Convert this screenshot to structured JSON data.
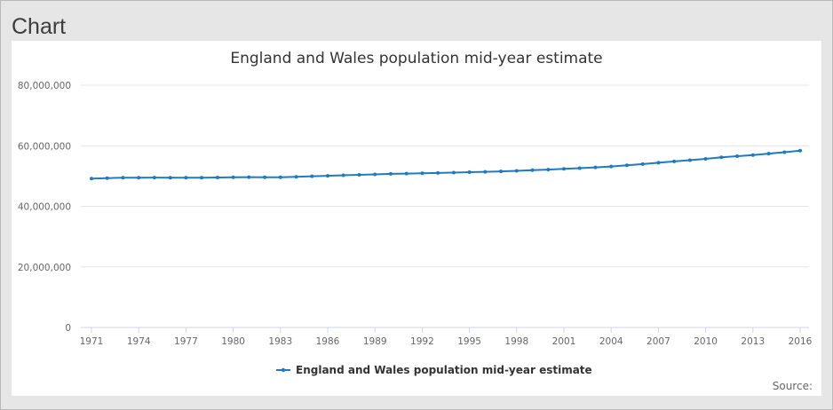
{
  "page": {
    "heading": "Chart",
    "source_label": "Source:"
  },
  "colors": {
    "series": "#1f7bbf",
    "grid": "#e6e6e6",
    "axis": "#ccd6eb"
  },
  "chart_data": {
    "type": "line",
    "title": "England and Wales population mid-year estimate",
    "xlabel": "",
    "ylabel": "",
    "ylim": [
      0,
      80000000
    ],
    "xlim": [
      1971,
      2016
    ],
    "yticks": [
      0,
      20000000,
      40000000,
      60000000,
      80000000
    ],
    "ytick_labels": [
      "0",
      "20,000,000",
      "40,000,000",
      "60,000,000",
      "80,000,000"
    ],
    "xticks": [
      1971,
      1974,
      1977,
      1980,
      1983,
      1986,
      1989,
      1992,
      1995,
      1998,
      2001,
      2004,
      2007,
      2010,
      2013,
      2016
    ],
    "xtick_labels": [
      "1971",
      "1974",
      "1977",
      "1980",
      "1983",
      "1986",
      "1989",
      "1992",
      "1995",
      "1998",
      "2001",
      "2004",
      "2007",
      "2010",
      "2013",
      "2016"
    ],
    "grid": true,
    "legend_position": "bottom-center",
    "x": [
      1971,
      1972,
      1973,
      1974,
      1975,
      1976,
      1977,
      1978,
      1979,
      1980,
      1981,
      1982,
      1983,
      1984,
      1985,
      1986,
      1987,
      1988,
      1989,
      1990,
      1991,
      1992,
      1993,
      1994,
      1995,
      1996,
      1997,
      1998,
      1999,
      2000,
      2001,
      2002,
      2003,
      2004,
      2005,
      2006,
      2007,
      2008,
      2009,
      2010,
      2011,
      2012,
      2013,
      2014,
      2015,
      2016
    ],
    "series": [
      {
        "name": "England and Wales population mid-year estimate",
        "values": [
          49150000,
          49330000,
          49460000,
          49470000,
          49480000,
          49460000,
          49440000,
          49440000,
          49510000,
          49600000,
          49630000,
          49580000,
          49620000,
          49760000,
          49920000,
          50080000,
          50250000,
          50390000,
          50560000,
          50720000,
          50810000,
          50920000,
          51030000,
          51140000,
          51270000,
          51410000,
          51560000,
          51720000,
          51930000,
          52140000,
          52360000,
          52600000,
          52860000,
          53150000,
          53570000,
          53950000,
          54390000,
          54840000,
          55240000,
          55690000,
          56170000,
          56570000,
          56950000,
          57410000,
          57890000,
          58380000
        ]
      }
    ]
  }
}
